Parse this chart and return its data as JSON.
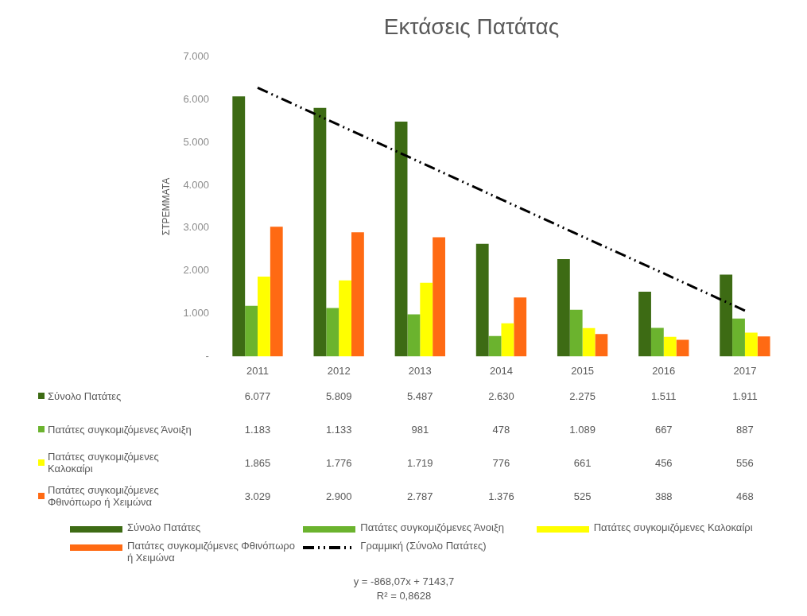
{
  "chart_data": {
    "type": "bar",
    "title": "Εκτάσεις Πατάτας",
    "ylabel": "ΣΤΡΕΜΜΑΤΑ",
    "categories": [
      "2011",
      "2012",
      "2013",
      "2014",
      "2015",
      "2016",
      "2017"
    ],
    "series": [
      {
        "name": "Σύνολο Πατάτες",
        "color": "#3d6b14",
        "values": [
          6077,
          5809,
          5487,
          2630,
          2275,
          1511,
          1911
        ],
        "value_labels": [
          "6.077",
          "5.809",
          "5.487",
          "2.630",
          "2.275",
          "1.511",
          "1.911"
        ]
      },
      {
        "name": "Πατάτες συγκομιζόμενες Άνοιξη",
        "color": "#6bb32e",
        "values": [
          1183,
          1133,
          981,
          478,
          1089,
          667,
          887
        ],
        "value_labels": [
          "1.183",
          "1.133",
          "981",
          "478",
          "1.089",
          "667",
          "887"
        ]
      },
      {
        "name": "Πατάτες συγκομιζόμενες Καλοκαίρι",
        "color": "#ffff00",
        "values": [
          1865,
          1776,
          1719,
          776,
          661,
          456,
          556
        ],
        "value_labels": [
          "1.865",
          "1.776",
          "1.719",
          "776",
          "661",
          "456",
          "556"
        ]
      },
      {
        "name": "Πατάτες συγκομιζόμενες Φθινόπωρο ή Χειμώνα",
        "color": "#ff6a13",
        "values": [
          3029,
          2900,
          2787,
          1376,
          525,
          388,
          468
        ],
        "value_labels": [
          "3.029",
          "2.900",
          "2.787",
          "1.376",
          "525",
          "388",
          "468"
        ]
      },
      {
        "name": "Γραμμική (Σύνολο Πατάτες)",
        "type": "line",
        "color": "#000000",
        "line_style": "dashed",
        "values": [
          6280,
          5410,
          4540,
          3670,
          2800,
          1940,
          1070
        ]
      }
    ],
    "ylim": [
      0,
      7000
    ],
    "yticks": [
      {
        "value": 0,
        "label": "-"
      },
      {
        "value": 1000,
        "label": "1.000"
      },
      {
        "value": 2000,
        "label": "2.000"
      },
      {
        "value": 3000,
        "label": "3.000"
      },
      {
        "value": 4000,
        "label": "4.000"
      },
      {
        "value": 5000,
        "label": "5.000"
      },
      {
        "value": 6000,
        "label": "6.000"
      },
      {
        "value": 7000,
        "label": "7.000"
      }
    ],
    "grid": false,
    "legend": "bottom",
    "marker": "none",
    "annotations": [
      "y = -868,07x + 7143,7",
      "R² = 0,8628"
    ]
  }
}
